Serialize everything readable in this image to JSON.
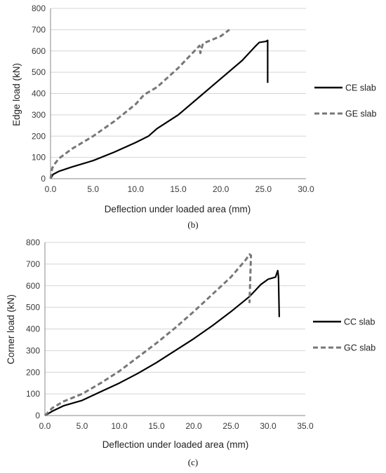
{
  "chart_data": [
    {
      "type": "line",
      "caption": "(b)",
      "xlabel": "Deflection under loaded area (mm)",
      "ylabel": "Edge load (kN)",
      "xlim": [
        0,
        30
      ],
      "ylim": [
        0,
        800
      ],
      "xticks": [
        "0.0",
        "5.0",
        "10.0",
        "15.0",
        "20.0",
        "25.0",
        "30.0"
      ],
      "yticks": [
        "0",
        "100",
        "200",
        "300",
        "400",
        "500",
        "600",
        "700",
        "800"
      ],
      "grid": "horizontal",
      "legend": "right",
      "series": [
        {
          "name": "CE slab",
          "style": "solid",
          "color": "#000000",
          "x": [
            0,
            0.3,
            1,
            2.5,
            5,
            7.5,
            10,
            11.5,
            12.5,
            15,
            17.5,
            20,
            22.5,
            24,
            24.5,
            25.3,
            25.5,
            25.5
          ],
          "y": [
            0,
            20,
            35,
            55,
            85,
            125,
            170,
            200,
            235,
            300,
            385,
            470,
            555,
            620,
            640,
            645,
            650,
            450
          ]
        },
        {
          "name": "GE slab",
          "style": "dashed",
          "color": "#777777",
          "x": [
            0,
            0.2,
            0.5,
            1,
            2.5,
            5,
            7.5,
            10,
            11,
            12.5,
            15,
            17.5,
            17.6,
            17.9,
            20,
            21
          ],
          "y": [
            0,
            50,
            70,
            95,
            140,
            200,
            270,
            350,
            395,
            430,
            520,
            625,
            590,
            635,
            670,
            700
          ]
        }
      ]
    },
    {
      "type": "line",
      "caption": "(c)",
      "xlabel": "Deflection under loaded area (mm)",
      "ylabel": "Corner load (kN)",
      "xlim": [
        0,
        35
      ],
      "ylim": [
        0,
        800
      ],
      "xticks": [
        "0.0",
        "5.0",
        "10.0",
        "15.0",
        "20.0",
        "25.0",
        "30.0",
        "35.0"
      ],
      "yticks": [
        "0",
        "100",
        "200",
        "300",
        "400",
        "500",
        "600",
        "700",
        "800"
      ],
      "grid": "horizontal",
      "legend": "right",
      "series": [
        {
          "name": "CC slab",
          "style": "solid",
          "color": "#000000",
          "x": [
            0,
            1,
            2.5,
            5,
            7.5,
            10,
            12.5,
            15,
            17.5,
            20,
            22.5,
            25,
            27.5,
            29,
            30,
            31,
            31.2,
            31.3,
            31.4,
            31.5
          ],
          "y": [
            0,
            20,
            45,
            70,
            110,
            150,
            195,
            245,
            300,
            355,
            415,
            480,
            550,
            605,
            630,
            640,
            660,
            670,
            640,
            455
          ]
        },
        {
          "name": "GC slab",
          "style": "dashed",
          "color": "#777777",
          "x": [
            0,
            1,
            2.5,
            5,
            7.5,
            10,
            12.5,
            15,
            17.5,
            20,
            22.5,
            25,
            27,
            27.5,
            27.7,
            27.5
          ],
          "y": [
            0,
            35,
            65,
            100,
            150,
            205,
            270,
            335,
            405,
            480,
            560,
            640,
            720,
            745,
            740,
            520
          ]
        }
      ]
    }
  ]
}
